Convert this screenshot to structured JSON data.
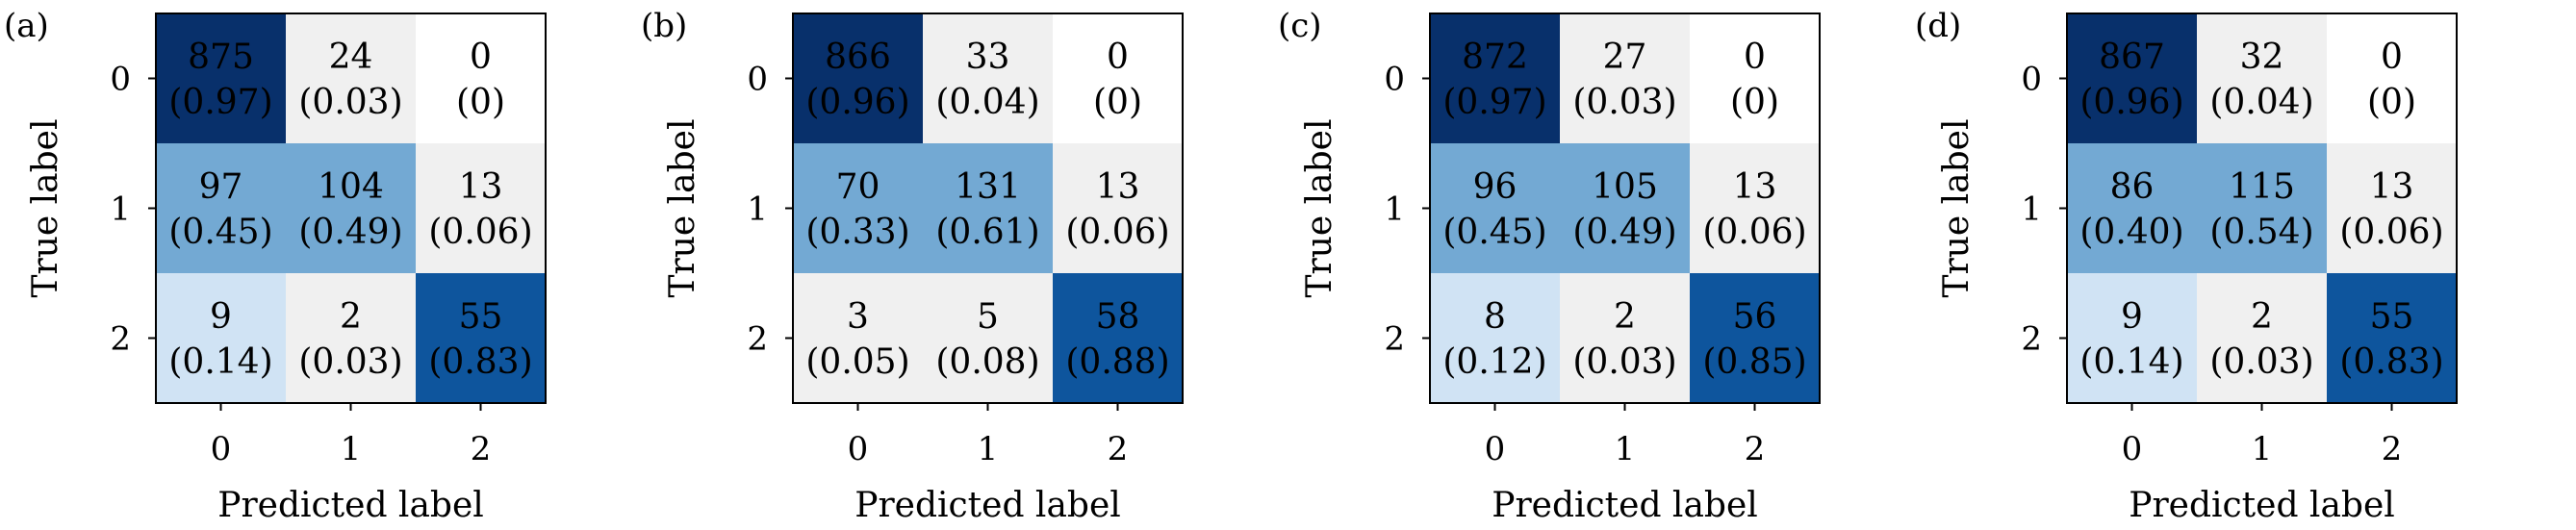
{
  "chart_data": [
    {
      "type": "heatmap",
      "panel_label": "(a)",
      "xlabel": "Predicted label",
      "ylabel": "True label",
      "x_ticks": [
        "0",
        "1",
        "2"
      ],
      "y_ticks": [
        "0",
        "1",
        "2"
      ],
      "counts": [
        [
          875,
          24,
          0
        ],
        [
          97,
          104,
          13
        ],
        [
          9,
          2,
          55
        ]
      ],
      "ratios": [
        [
          "0.97",
          "0.03",
          "0"
        ],
        [
          "0.45",
          "0.49",
          "0.06"
        ],
        [
          "0.14",
          "0.03",
          "0.83"
        ]
      ]
    },
    {
      "type": "heatmap",
      "panel_label": "(b)",
      "xlabel": "Predicted label",
      "ylabel": "True label",
      "x_ticks": [
        "0",
        "1",
        "2"
      ],
      "y_ticks": [
        "0",
        "1",
        "2"
      ],
      "counts": [
        [
          866,
          33,
          0
        ],
        [
          70,
          131,
          13
        ],
        [
          3,
          5,
          58
        ]
      ],
      "ratios": [
        [
          "0.96",
          "0.04",
          "0"
        ],
        [
          "0.33",
          "0.61",
          "0.06"
        ],
        [
          "0.05",
          "0.08",
          "0.88"
        ]
      ]
    },
    {
      "type": "heatmap",
      "panel_label": "(c)",
      "xlabel": "Predicted label",
      "ylabel": "True label",
      "x_ticks": [
        "0",
        "1",
        "2"
      ],
      "y_ticks": [
        "0",
        "1",
        "2"
      ],
      "counts": [
        [
          872,
          27,
          0
        ],
        [
          96,
          105,
          13
        ],
        [
          8,
          2,
          56
        ]
      ],
      "ratios": [
        [
          "0.97",
          "0.03",
          "0"
        ],
        [
          "0.45",
          "0.49",
          "0.06"
        ],
        [
          "0.12",
          "0.03",
          "0.85"
        ]
      ]
    },
    {
      "type": "heatmap",
      "panel_label": "(d)",
      "xlabel": "Predicted label",
      "ylabel": "True label",
      "x_ticks": [
        "0",
        "1",
        "2"
      ],
      "y_ticks": [
        "0",
        "1",
        "2"
      ],
      "counts": [
        [
          867,
          32,
          0
        ],
        [
          86,
          115,
          13
        ],
        [
          9,
          2,
          55
        ]
      ],
      "ratios": [
        [
          "0.96",
          "0.04",
          "0"
        ],
        [
          "0.40",
          "0.54",
          "0.06"
        ],
        [
          "0.14",
          "0.03",
          "0.83"
        ]
      ]
    }
  ],
  "colors": {
    "very_dark": "#08306b",
    "dark": "#0e559d",
    "medium": "#73a9d3",
    "light": "#d0e3f4",
    "very_light": "#f0f0f0",
    "white": "#ffffff",
    "light_text": "#ffffff",
    "dark_text": "#000000"
  }
}
